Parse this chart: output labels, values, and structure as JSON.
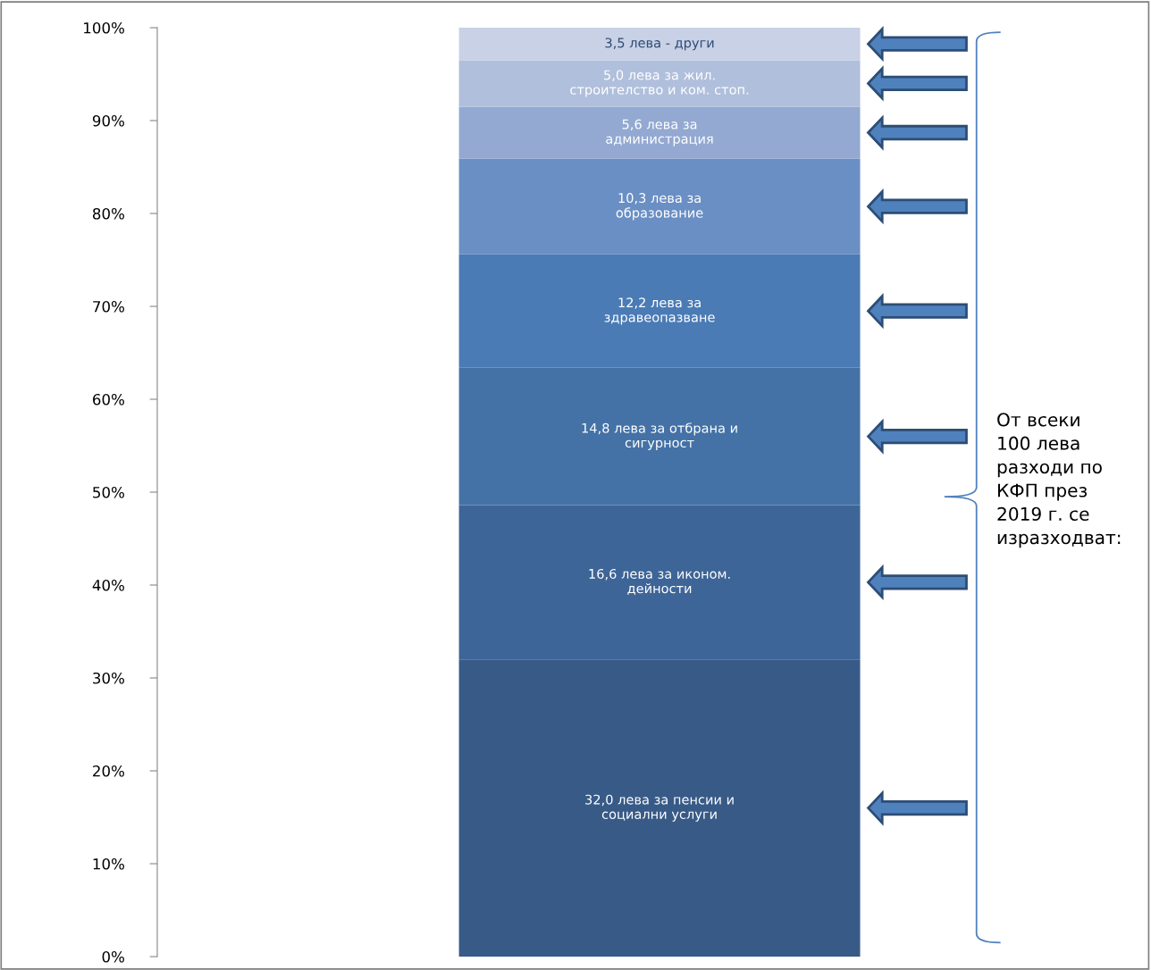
{
  "chart_data": {
    "type": "bar",
    "stacked": true,
    "categories": [
      null
    ],
    "series": [
      {
        "name": "32,0 лева за пенсии и\nсоциални услуги",
        "color": "#385a87",
        "values": [
          32.0
        ]
      },
      {
        "name": "16,6 лева за иконом.\nдейности",
        "color": "#3e6597",
        "values": [
          16.6
        ]
      },
      {
        "name": "14,8 лева за отбрана и\nсигурност",
        "color": "#4472a6",
        "values": [
          14.8
        ]
      },
      {
        "name": "12,2 лева за\nздравеопазване",
        "color": "#4a7bb5",
        "values": [
          12.2
        ]
      },
      {
        "name": "10,3 лева за\nобразование",
        "color": "#6a8fc4",
        "values": [
          10.3
        ]
      },
      {
        "name": "5,6 лева за\nадминистрация",
        "color": "#93a9d2",
        "values": [
          5.6
        ]
      },
      {
        "name": "5,0 лева за жил.\nстроителство и ком. стоп.",
        "color": "#b0bfdc",
        "values": [
          5.0
        ]
      },
      {
        "name": "3,5 лева - други",
        "color": "#c8d1e5",
        "values": [
          3.5
        ]
      }
    ],
    "ylim": [
      0,
      100
    ],
    "yticks": [
      {
        "value": 0,
        "label": "0%"
      },
      {
        "value": 10,
        "label": "10%"
      },
      {
        "value": 20,
        "label": "20%"
      },
      {
        "value": 30,
        "label": "30%"
      },
      {
        "value": 40,
        "label": "40%"
      },
      {
        "value": 50,
        "label": "50%"
      },
      {
        "value": 60,
        "label": "60%"
      },
      {
        "value": 70,
        "label": "70%"
      },
      {
        "value": 80,
        "label": "80%"
      },
      {
        "value": 90,
        "label": "90%"
      },
      {
        "value": 100,
        "label": "100%"
      }
    ],
    "grid": false,
    "annotations": [
      "От всеки\n100 лева\nразходи по\nКФП през\n2019 г. се\nизразходват:"
    ]
  }
}
